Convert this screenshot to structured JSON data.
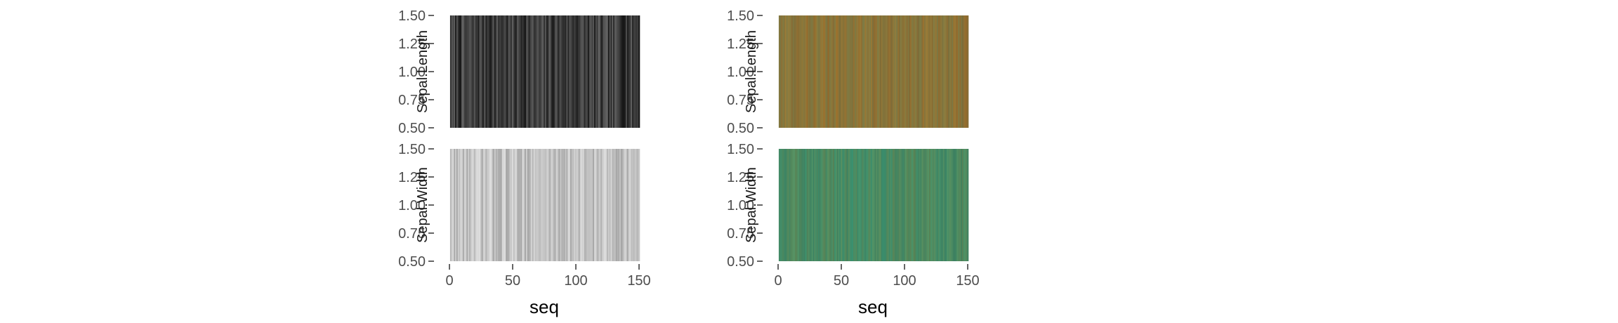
{
  "chart_data": [
    {
      "type": "heatmap",
      "title": "",
      "xlabel": "seq",
      "x_range": [
        1,
        150
      ],
      "x_ticks": [
        0,
        50,
        100,
        150
      ],
      "y_ticks": [
        0.5,
        0.75,
        1.0,
        1.25,
        1.5
      ],
      "y_tick_labels": [
        "0.50",
        "0.75",
        "1.00",
        "1.25",
        "1.50"
      ],
      "ylim": [
        0.5,
        1.5
      ],
      "grid": false,
      "color_mode": "grayscale",
      "panels": [
        {
          "ylabel": "Sepal.Length",
          "base_color": "#3c3c3c",
          "variation": 38
        },
        {
          "ylabel": "Sepal.Width",
          "base_color": "#c2c2c2",
          "variation": 30
        }
      ]
    },
    {
      "type": "heatmap",
      "title": "",
      "xlabel": "seq",
      "x_range": [
        1,
        150
      ],
      "x_ticks": [
        0,
        50,
        100,
        150
      ],
      "y_ticks": [
        0.5,
        0.75,
        1.0,
        1.25,
        1.5
      ],
      "y_tick_labels": [
        "0.50",
        "0.75",
        "1.00",
        "1.25",
        "1.50"
      ],
      "ylim": [
        0.5,
        1.5
      ],
      "grid": false,
      "color_mode": "color",
      "panels": [
        {
          "ylabel": "Sepal.Length",
          "base_color": "#8a7338",
          "variation": 16
        },
        {
          "ylabel": "Sepal.Width",
          "base_color": "#4a8a62",
          "variation": 16
        }
      ]
    }
  ]
}
